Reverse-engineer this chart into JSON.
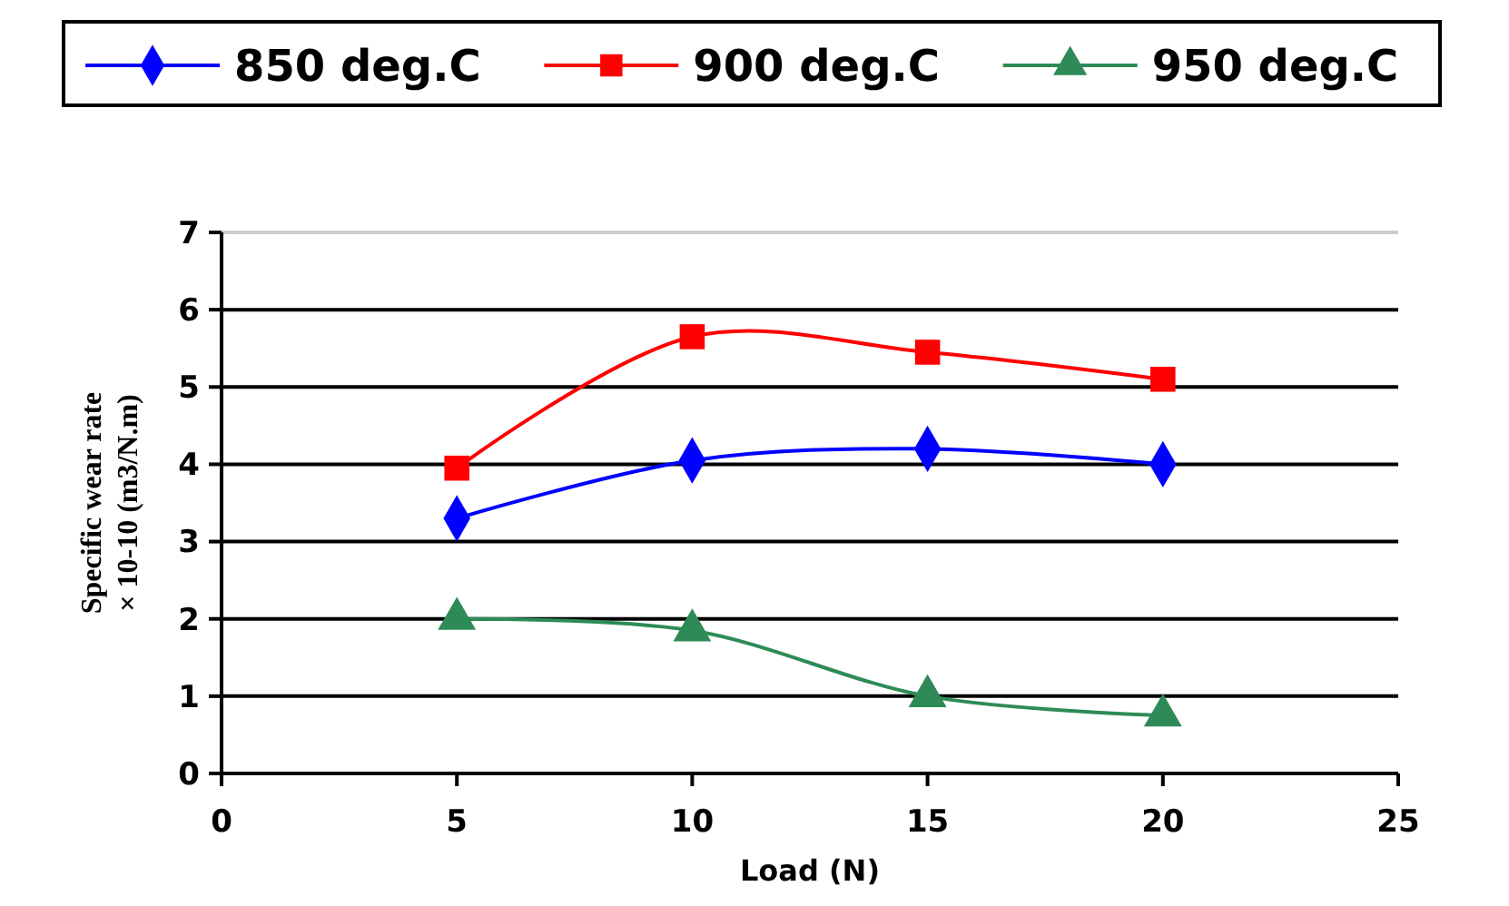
{
  "chart_data": {
    "type": "line",
    "xlabel": "Load (N)",
    "ylabel": "Specific wear rate\n× 10-10 (m3/N.m)",
    "x": [
      5,
      10,
      15,
      20
    ],
    "series": [
      {
        "name": "850 deg.C",
        "color": "#0000ff",
        "marker": "diamond",
        "values": [
          3.3,
          4.05,
          4.2,
          4.0
        ]
      },
      {
        "name": "900 deg.C",
        "color": "#ff0000",
        "marker": "square",
        "values": [
          3.95,
          5.65,
          5.45,
          5.1
        ]
      },
      {
        "name": "950 deg.C",
        "color": "#2e8b57",
        "marker": "triangle",
        "values": [
          2.0,
          1.85,
          1.0,
          0.75
        ]
      }
    ],
    "xlim": [
      0,
      25
    ],
    "xticks": [
      0,
      5,
      10,
      15,
      20,
      25
    ],
    "ylim": [
      0,
      7
    ],
    "yticks": [
      0,
      1,
      2,
      3,
      4,
      5,
      6,
      7
    ],
    "grid": "y",
    "legend": "top"
  }
}
